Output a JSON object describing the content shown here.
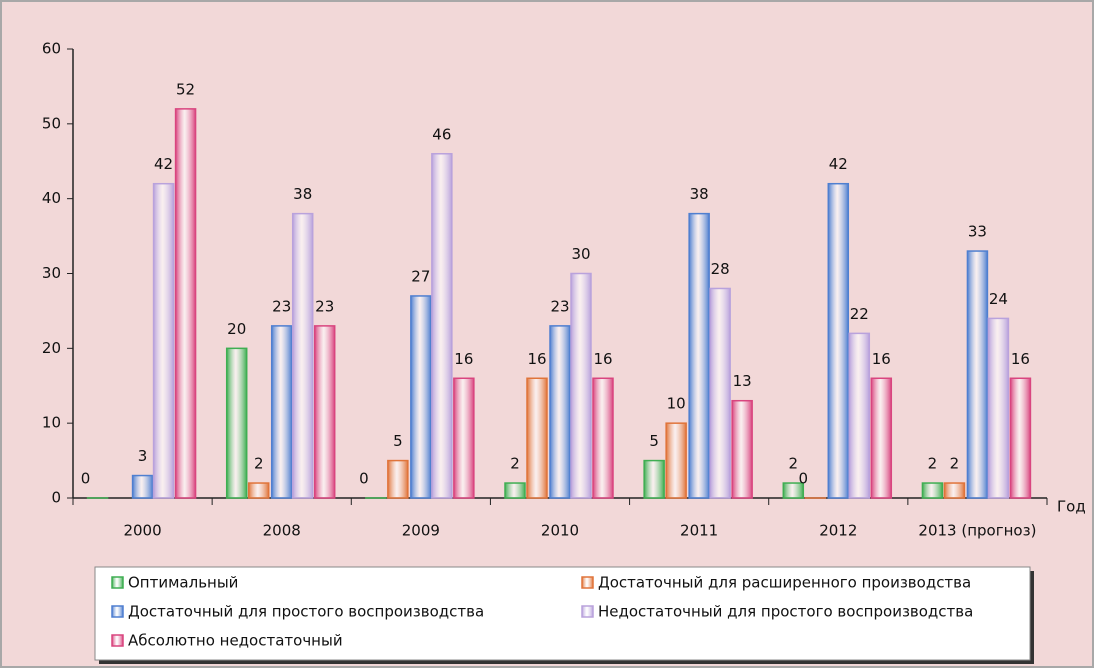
{
  "chart_data": {
    "type": "bar",
    "categories": [
      "2000",
      "2008",
      "2009",
      "2010",
      "2011",
      "2012",
      "2013 (прогноз)"
    ],
    "x_label": "Год",
    "series": [
      {
        "name": "Оптимальный",
        "color": "#3fae52",
        "values": [
          0,
          20,
          0,
          2,
          5,
          2,
          2
        ]
      },
      {
        "name": "Достаточный для расширенного производства",
        "color": "#e0743a",
        "values": [
          null,
          2,
          5,
          16,
          10,
          0,
          2
        ]
      },
      {
        "name": "Достаточный для простого воспроизводства",
        "color": "#4f7fd0",
        "values": [
          3,
          23,
          27,
          23,
          38,
          42,
          33
        ]
      },
      {
        "name": "Недостаточный для простого воспроизводства",
        "color": "#b9a2dc",
        "values": [
          42,
          38,
          46,
          30,
          28,
          22,
          24
        ]
      },
      {
        "name": "Абсолютно недостаточный",
        "color": "#d9457f",
        "values": [
          52,
          23,
          16,
          16,
          13,
          16,
          16
        ]
      }
    ],
    "ylim": [
      0,
      60
    ],
    "yticks": [
      0,
      10,
      20,
      30,
      40,
      50,
      60
    ],
    "grid": false
  }
}
